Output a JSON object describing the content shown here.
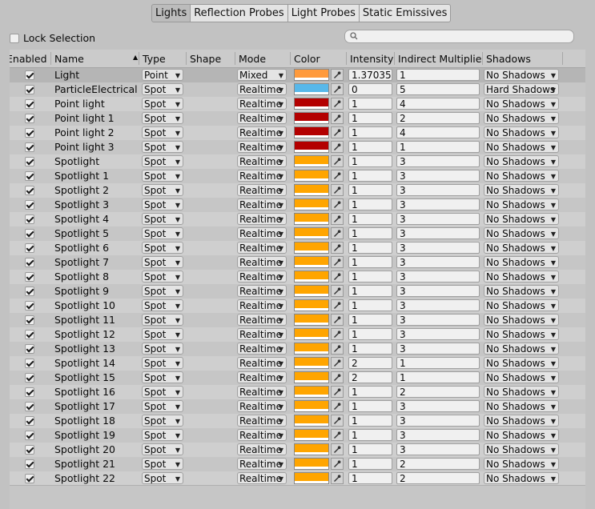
{
  "tabs": [
    "Lights",
    "Reflection Probes",
    "Light Probes",
    "Static Emissives"
  ],
  "active_tab": "Lights",
  "lock_selection": {
    "label": "Lock Selection",
    "checked": false
  },
  "search": {
    "placeholder": ""
  },
  "columns": [
    "Enabled",
    "Name",
    "Type",
    "Shape",
    "Mode",
    "Color",
    "Intensity",
    "Indirect Multiplier",
    "Shadows"
  ],
  "sort_column": "Name",
  "colors": {
    "orange": "#ffa500",
    "light_orange": "#ff9a3c",
    "light_blue": "#58b8ea",
    "dark_red": "#b30000"
  },
  "rows": [
    {
      "enabled": true,
      "name": "Light",
      "type": "Point",
      "mode": "Mixed",
      "color": "#ff9a3c",
      "intensity": "1.37035",
      "indirect": "1",
      "shadows": "No Shadows"
    },
    {
      "enabled": true,
      "name": "ParticleElectricalLight",
      "type": "Spot",
      "mode": "Realtime",
      "color": "#58b8ea",
      "intensity": "0",
      "indirect": "5",
      "shadows": "Hard Shadows"
    },
    {
      "enabled": true,
      "name": "Point light",
      "type": "Spot",
      "mode": "Realtime",
      "color": "#b30000",
      "intensity": "1",
      "indirect": "4",
      "shadows": "No Shadows"
    },
    {
      "enabled": true,
      "name": "Point light 1",
      "type": "Spot",
      "mode": "Realtime",
      "color": "#b30000",
      "intensity": "1",
      "indirect": "2",
      "shadows": "No Shadows"
    },
    {
      "enabled": true,
      "name": "Point light 2",
      "type": "Spot",
      "mode": "Realtime",
      "color": "#b30000",
      "intensity": "1",
      "indirect": "4",
      "shadows": "No Shadows"
    },
    {
      "enabled": true,
      "name": "Point light 3",
      "type": "Spot",
      "mode": "Realtime",
      "color": "#b30000",
      "intensity": "1",
      "indirect": "1",
      "shadows": "No Shadows"
    },
    {
      "enabled": true,
      "name": "Spotlight",
      "type": "Spot",
      "mode": "Realtime",
      "color": "#ffa500",
      "intensity": "1",
      "indirect": "3",
      "shadows": "No Shadows"
    },
    {
      "enabled": true,
      "name": "Spotlight 1",
      "type": "Spot",
      "mode": "Realtime",
      "color": "#ffa500",
      "intensity": "1",
      "indirect": "3",
      "shadows": "No Shadows"
    },
    {
      "enabled": true,
      "name": "Spotlight 2",
      "type": "Spot",
      "mode": "Realtime",
      "color": "#ffa500",
      "intensity": "1",
      "indirect": "3",
      "shadows": "No Shadows"
    },
    {
      "enabled": true,
      "name": "Spotlight 3",
      "type": "Spot",
      "mode": "Realtime",
      "color": "#ffa500",
      "intensity": "1",
      "indirect": "3",
      "shadows": "No Shadows"
    },
    {
      "enabled": true,
      "name": "Spotlight 4",
      "type": "Spot",
      "mode": "Realtime",
      "color": "#ffa500",
      "intensity": "1",
      "indirect": "3",
      "shadows": "No Shadows"
    },
    {
      "enabled": true,
      "name": "Spotlight 5",
      "type": "Spot",
      "mode": "Realtime",
      "color": "#ffa500",
      "intensity": "1",
      "indirect": "3",
      "shadows": "No Shadows"
    },
    {
      "enabled": true,
      "name": "Spotlight 6",
      "type": "Spot",
      "mode": "Realtime",
      "color": "#ffa500",
      "intensity": "1",
      "indirect": "3",
      "shadows": "No Shadows"
    },
    {
      "enabled": true,
      "name": "Spotlight 7",
      "type": "Spot",
      "mode": "Realtime",
      "color": "#ffa500",
      "intensity": "1",
      "indirect": "3",
      "shadows": "No Shadows"
    },
    {
      "enabled": true,
      "name": "Spotlight 8",
      "type": "Spot",
      "mode": "Realtime",
      "color": "#ffa500",
      "intensity": "1",
      "indirect": "3",
      "shadows": "No Shadows"
    },
    {
      "enabled": true,
      "name": "Spotlight 9",
      "type": "Spot",
      "mode": "Realtime",
      "color": "#ffa500",
      "intensity": "1",
      "indirect": "3",
      "shadows": "No Shadows"
    },
    {
      "enabled": true,
      "name": "Spotlight 10",
      "type": "Spot",
      "mode": "Realtime",
      "color": "#ffa500",
      "intensity": "1",
      "indirect": "3",
      "shadows": "No Shadows"
    },
    {
      "enabled": true,
      "name": "Spotlight 11",
      "type": "Spot",
      "mode": "Realtime",
      "color": "#ffa500",
      "intensity": "1",
      "indirect": "3",
      "shadows": "No Shadows"
    },
    {
      "enabled": true,
      "name": "Spotlight 12",
      "type": "Spot",
      "mode": "Realtime",
      "color": "#ffa500",
      "intensity": "1",
      "indirect": "3",
      "shadows": "No Shadows"
    },
    {
      "enabled": true,
      "name": "Spotlight 13",
      "type": "Spot",
      "mode": "Realtime",
      "color": "#ffa500",
      "intensity": "1",
      "indirect": "3",
      "shadows": "No Shadows"
    },
    {
      "enabled": true,
      "name": "Spotlight 14",
      "type": "Spot",
      "mode": "Realtime",
      "color": "#ffa500",
      "intensity": "2",
      "indirect": "1",
      "shadows": "No Shadows"
    },
    {
      "enabled": true,
      "name": "Spotlight 15",
      "type": "Spot",
      "mode": "Realtime",
      "color": "#ffa500",
      "intensity": "2",
      "indirect": "1",
      "shadows": "No Shadows"
    },
    {
      "enabled": true,
      "name": "Spotlight 16",
      "type": "Spot",
      "mode": "Realtime",
      "color": "#ffa500",
      "intensity": "1",
      "indirect": "2",
      "shadows": "No Shadows"
    },
    {
      "enabled": true,
      "name": "Spotlight 17",
      "type": "Spot",
      "mode": "Realtime",
      "color": "#ffa500",
      "intensity": "1",
      "indirect": "3",
      "shadows": "No Shadows"
    },
    {
      "enabled": true,
      "name": "Spotlight 18",
      "type": "Spot",
      "mode": "Realtime",
      "color": "#ffa500",
      "intensity": "1",
      "indirect": "3",
      "shadows": "No Shadows"
    },
    {
      "enabled": true,
      "name": "Spotlight 19",
      "type": "Spot",
      "mode": "Realtime",
      "color": "#ffa500",
      "intensity": "1",
      "indirect": "3",
      "shadows": "No Shadows"
    },
    {
      "enabled": true,
      "name": "Spotlight 20",
      "type": "Spot",
      "mode": "Realtime",
      "color": "#ffa500",
      "intensity": "1",
      "indirect": "3",
      "shadows": "No Shadows"
    },
    {
      "enabled": true,
      "name": "Spotlight 21",
      "type": "Spot",
      "mode": "Realtime",
      "color": "#ffa500",
      "intensity": "1",
      "indirect": "2",
      "shadows": "No Shadows"
    },
    {
      "enabled": true,
      "name": "Spotlight 22",
      "type": "Spot",
      "mode": "Realtime",
      "color": "#ffa500",
      "intensity": "1",
      "indirect": "2",
      "shadows": "No Shadows"
    }
  ]
}
